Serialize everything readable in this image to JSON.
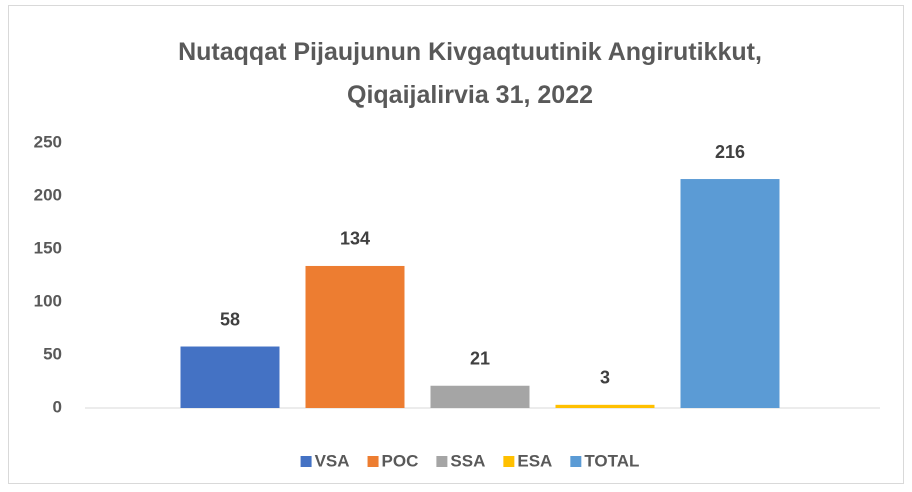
{
  "chart_data": {
    "type": "bar",
    "title": "Nutaqqat Pijaujunun Kivgaqtuutinik Angirutikkut, Qiqaijalirvia 31, 2022",
    "categories": [
      null
    ],
    "series": [
      {
        "name": "VSA",
        "color": "#4472c4",
        "values": [
          58
        ]
      },
      {
        "name": "POC",
        "color": "#ed7d31",
        "values": [
          134
        ]
      },
      {
        "name": "SSA",
        "color": "#a5a5a5",
        "values": [
          21
        ]
      },
      {
        "name": "ESA",
        "color": "#ffc000",
        "values": [
          3
        ]
      },
      {
        "name": "TOTAL",
        "color": "#5b9bd5",
        "values": [
          216
        ]
      }
    ],
    "ylim": [
      0,
      250
    ],
    "yticks": [
      0,
      50,
      100,
      150,
      200,
      250
    ],
    "grid": false,
    "legend": "bottom"
  }
}
